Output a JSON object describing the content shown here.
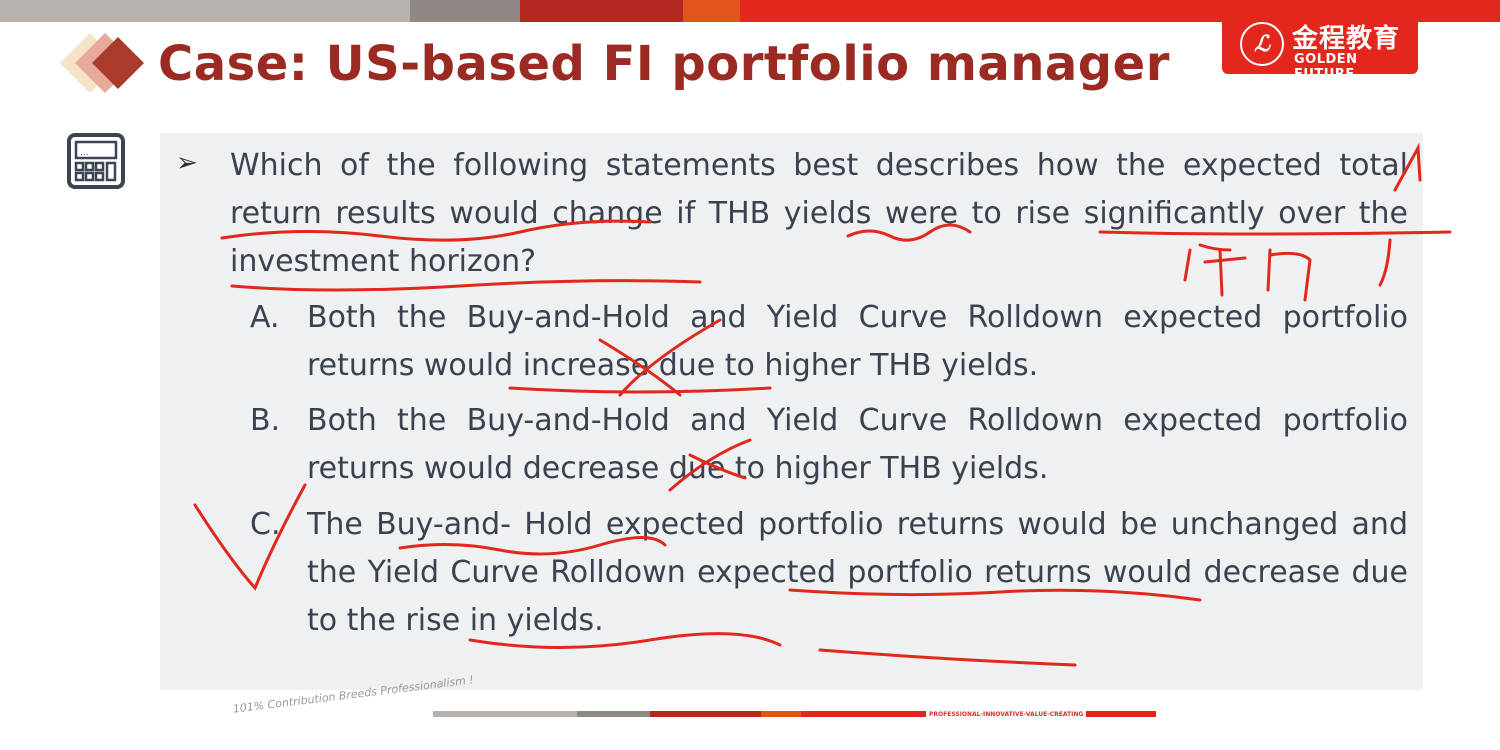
{
  "header": {
    "title": "Case: US-based FI portfolio manager",
    "logo": {
      "chinese": "金程教育",
      "english": "GOLDEN FUTURE"
    },
    "bar_colors": [
      "#b8b2af",
      "#8f8885",
      "#b4281f",
      "#e3531c",
      "#e3271d"
    ]
  },
  "question": {
    "text": "Which of the following statements best describes how the expected total return results would change if THB yields were to rise significantly over the investment horizon?",
    "options": [
      {
        "letter": "A.",
        "text": "Both the Buy-and-Hold and Yield Curve Rolldown expected portfolio returns would increase due to higher THB yields."
      },
      {
        "letter": "B.",
        "text": "Both the Buy-and-Hold and Yield Curve Rolldown expected portfolio returns would decrease due to higher THB yields."
      },
      {
        "letter": "C.",
        "text": "The Buy-and- Hold expected portfolio returns would be unchanged and the Yield Curve Rolldown expected portfolio returns would decrease due to the rise in yields."
      }
    ]
  },
  "footer": {
    "slogan": "101% Contribution Breeds Professionalism !",
    "tagline": "PROFESSIONAL-INNOVATIVE-VALUE-CREATING"
  },
  "icons": [
    "diamond-logo-icon",
    "calculator-icon",
    "arrow-bullet-icon"
  ],
  "annotation_color": "#e0281c"
}
